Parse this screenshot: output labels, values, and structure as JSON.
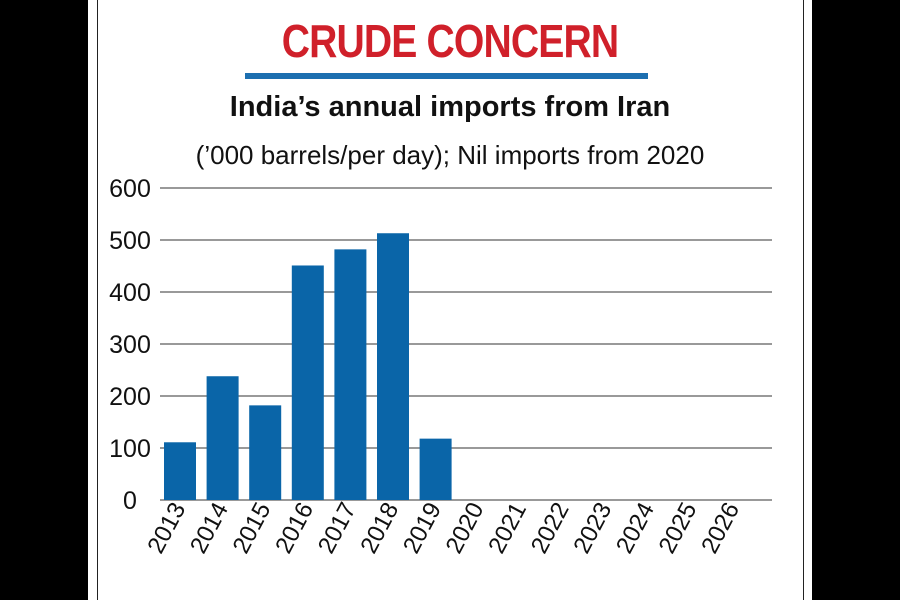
{
  "chart_data": {
    "type": "bar",
    "title": "CRUDE CONCERN",
    "subtitle": "India’s annual imports from Iran",
    "note": "(’000 barrels/per day); Nil imports from 2020",
    "categories": [
      "2013",
      "2014",
      "2015",
      "2016",
      "2017",
      "2018",
      "2019",
      "2020",
      "2021",
      "2022",
      "2023",
      "2024",
      "2025",
      "2026"
    ],
    "values": [
      111,
      238,
      182,
      451,
      482,
      513,
      118,
      0,
      0,
      0,
      0,
      0,
      0,
      0
    ],
    "yticks": [
      "0",
      "100",
      "200",
      "300",
      "400",
      "500",
      "600"
    ],
    "ylim": [
      0,
      600
    ],
    "xlabel": "",
    "ylabel": "",
    "grid": true,
    "bar_color": "#0a65a8",
    "title_color": "#d0202a",
    "rule_color": "#1d6fb0"
  }
}
